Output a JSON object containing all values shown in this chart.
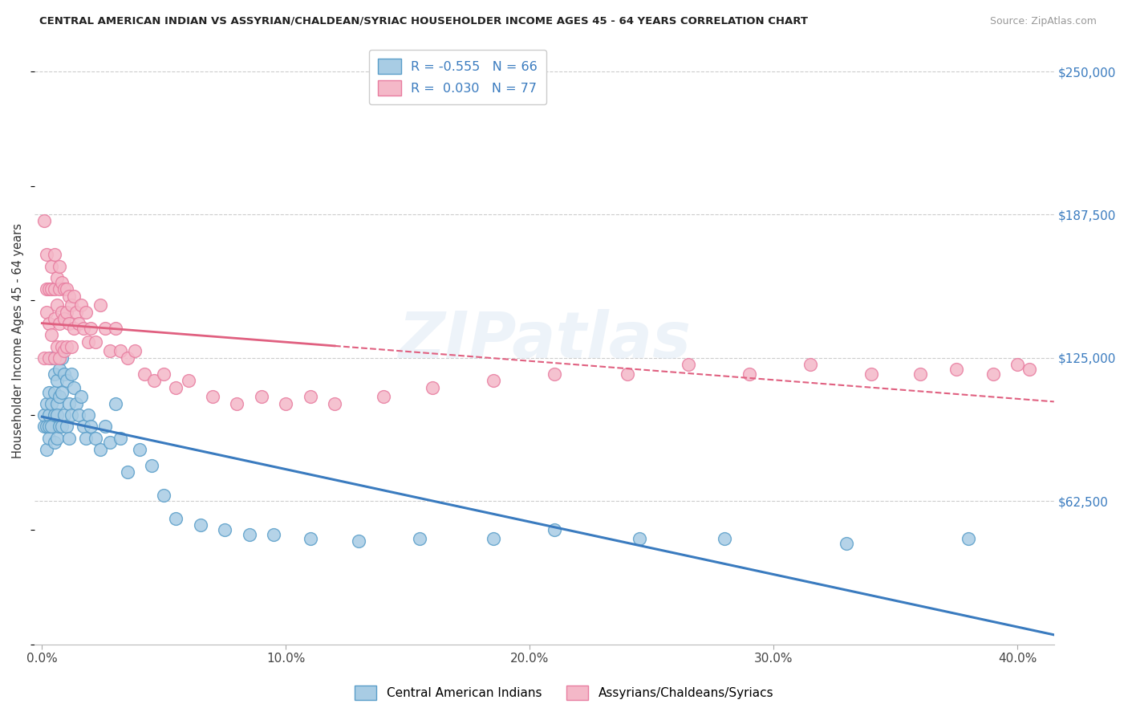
{
  "title": "CENTRAL AMERICAN INDIAN VS ASSYRIAN/CHALDEAN/SYRIAC HOUSEHOLDER INCOME AGES 45 - 64 YEARS CORRELATION CHART",
  "source": "Source: ZipAtlas.com",
  "ylabel": "Householder Income Ages 45 - 64 years",
  "xlabel_ticks": [
    "0.0%",
    "10.0%",
    "20.0%",
    "30.0%",
    "40.0%"
  ],
  "xlabel_vals": [
    0.0,
    0.1,
    0.2,
    0.3,
    0.4
  ],
  "yticks": [
    0,
    62500,
    125000,
    187500,
    250000
  ],
  "ytick_labels": [
    "",
    "$62,500",
    "$125,000",
    "$187,500",
    "$250,000"
  ],
  "ylim": [
    0,
    265000
  ],
  "xlim": [
    -0.003,
    0.415
  ],
  "watermark_text": "ZIPatlas",
  "blue_R": "-0.555",
  "blue_N": "66",
  "pink_R": "0.030",
  "pink_N": "77",
  "blue_color": "#a8cce4",
  "pink_color": "#f4b8c8",
  "blue_edge_color": "#5a9ec9",
  "pink_edge_color": "#e87da0",
  "blue_line_color": "#3a7bbf",
  "pink_line_color": "#e06080",
  "legend_label_blue": "Central American Indians",
  "legend_label_pink": "Assyrians/Chaldeans/Syriacs",
  "blue_scatter_x": [
    0.001,
    0.001,
    0.002,
    0.002,
    0.002,
    0.003,
    0.003,
    0.003,
    0.003,
    0.004,
    0.004,
    0.004,
    0.005,
    0.005,
    0.005,
    0.005,
    0.006,
    0.006,
    0.006,
    0.006,
    0.007,
    0.007,
    0.007,
    0.008,
    0.008,
    0.008,
    0.009,
    0.009,
    0.01,
    0.01,
    0.011,
    0.011,
    0.012,
    0.012,
    0.013,
    0.014,
    0.015,
    0.016,
    0.017,
    0.018,
    0.019,
    0.02,
    0.022,
    0.024,
    0.026,
    0.028,
    0.03,
    0.032,
    0.035,
    0.04,
    0.045,
    0.05,
    0.055,
    0.065,
    0.075,
    0.085,
    0.095,
    0.11,
    0.13,
    0.155,
    0.185,
    0.21,
    0.245,
    0.28,
    0.33,
    0.38
  ],
  "blue_scatter_y": [
    95000,
    100000,
    85000,
    105000,
    95000,
    110000,
    100000,
    90000,
    95000,
    125000,
    105000,
    95000,
    118000,
    100000,
    110000,
    88000,
    115000,
    105000,
    90000,
    100000,
    120000,
    108000,
    95000,
    125000,
    110000,
    95000,
    118000,
    100000,
    115000,
    95000,
    105000,
    90000,
    118000,
    100000,
    112000,
    105000,
    100000,
    108000,
    95000,
    90000,
    100000,
    95000,
    90000,
    85000,
    95000,
    88000,
    105000,
    90000,
    75000,
    85000,
    78000,
    65000,
    55000,
    52000,
    50000,
    48000,
    48000,
    46000,
    45000,
    46000,
    46000,
    50000,
    46000,
    46000,
    44000,
    46000
  ],
  "pink_scatter_x": [
    0.001,
    0.001,
    0.002,
    0.002,
    0.002,
    0.003,
    0.003,
    0.003,
    0.004,
    0.004,
    0.004,
    0.005,
    0.005,
    0.005,
    0.005,
    0.006,
    0.006,
    0.006,
    0.007,
    0.007,
    0.007,
    0.007,
    0.008,
    0.008,
    0.008,
    0.009,
    0.009,
    0.009,
    0.01,
    0.01,
    0.01,
    0.011,
    0.011,
    0.012,
    0.012,
    0.013,
    0.013,
    0.014,
    0.015,
    0.016,
    0.017,
    0.018,
    0.019,
    0.02,
    0.022,
    0.024,
    0.026,
    0.028,
    0.03,
    0.032,
    0.035,
    0.038,
    0.042,
    0.046,
    0.05,
    0.055,
    0.06,
    0.07,
    0.08,
    0.09,
    0.1,
    0.11,
    0.12,
    0.14,
    0.16,
    0.185,
    0.21,
    0.24,
    0.265,
    0.29,
    0.315,
    0.34,
    0.36,
    0.375,
    0.39,
    0.4,
    0.405
  ],
  "pink_scatter_y": [
    125000,
    185000,
    155000,
    145000,
    170000,
    155000,
    140000,
    125000,
    165000,
    155000,
    135000,
    170000,
    155000,
    142000,
    125000,
    160000,
    148000,
    130000,
    165000,
    155000,
    140000,
    125000,
    158000,
    145000,
    130000,
    155000,
    142000,
    128000,
    155000,
    145000,
    130000,
    152000,
    140000,
    148000,
    130000,
    152000,
    138000,
    145000,
    140000,
    148000,
    138000,
    145000,
    132000,
    138000,
    132000,
    148000,
    138000,
    128000,
    138000,
    128000,
    125000,
    128000,
    118000,
    115000,
    118000,
    112000,
    115000,
    108000,
    105000,
    108000,
    105000,
    108000,
    105000,
    108000,
    112000,
    115000,
    118000,
    118000,
    122000,
    118000,
    122000,
    118000,
    118000,
    120000,
    118000,
    122000,
    120000
  ]
}
